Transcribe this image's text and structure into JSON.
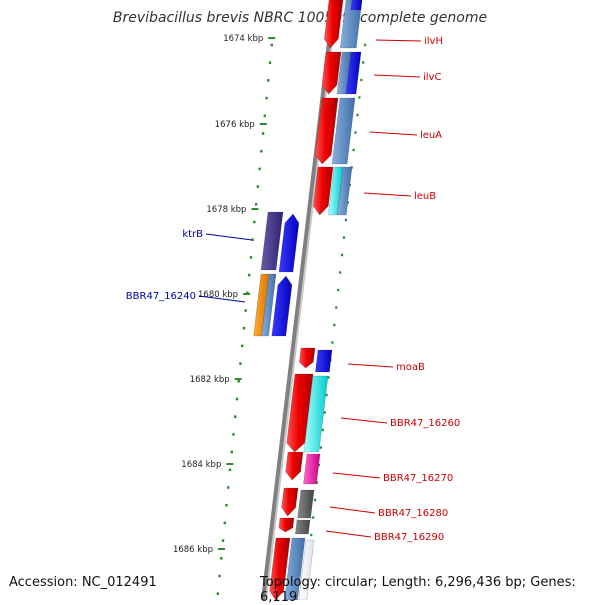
{
  "title": "Brevibacillus brevis NBRC 100599, complete genome",
  "accession": "Accession: NC_012491",
  "summary": "Topology: circular; Length: 6,296,436 bp; Genes: 6,119",
  "colors": {
    "backbone": "#808080",
    "tick": "#2e8b2e",
    "label_right": "#cc0000",
    "label_left": "#0000aa"
  },
  "ruler": [
    {
      "label": "1674 kbp"
    },
    {
      "label": "1676 kbp"
    },
    {
      "label": "1678 kbp"
    },
    {
      "label": "1680 kbp"
    },
    {
      "label": "1682 kbp"
    },
    {
      "label": "1684 kbp"
    },
    {
      "label": "1686 kbp"
    }
  ],
  "genes": [
    {
      "name": "ilvH",
      "side": "right"
    },
    {
      "name": "ilvC",
      "side": "right"
    },
    {
      "name": "leuA",
      "side": "right"
    },
    {
      "name": "leuB",
      "side": "right"
    },
    {
      "name": "ktrB",
      "side": "left"
    },
    {
      "name": "BBR47_16240",
      "side": "left"
    },
    {
      "name": "moaB",
      "side": "right"
    },
    {
      "name": "BBR47_16260",
      "side": "right"
    },
    {
      "name": "BBR47_16270",
      "side": "right"
    },
    {
      "name": "BBR47_16280",
      "side": "right"
    },
    {
      "name": "BBR47_16290",
      "side": "right"
    }
  ]
}
